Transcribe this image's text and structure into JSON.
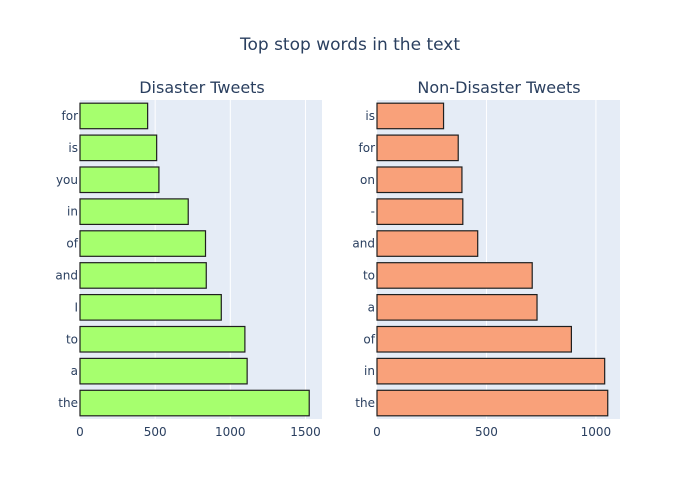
{
  "title": "Top stop words in the text",
  "chart_data": [
    {
      "type": "bar",
      "orientation": "horizontal",
      "title": "Disaster Tweets",
      "categories": [
        "the",
        "a",
        "to",
        "I",
        "and",
        "of",
        "in",
        "you",
        "is",
        "for"
      ],
      "values": [
        1525,
        1112,
        1097,
        940,
        840,
        835,
        720,
        525,
        510,
        450
      ],
      "xlim": [
        0,
        1610
      ],
      "xticks": [
        0,
        500,
        1000,
        1500
      ],
      "bar_color": "#a6ff6e",
      "bar_outline": "#1f1f1f",
      "plot_background": "#e5ecf6",
      "grid": true
    },
    {
      "type": "bar",
      "orientation": "horizontal",
      "title": "Non-Disaster Tweets",
      "categories": [
        "the",
        "in",
        "of",
        "a",
        "to",
        "and",
        "-",
        "on",
        "for",
        "is"
      ],
      "values": [
        1054,
        1040,
        888,
        731,
        709,
        460,
        392,
        388,
        371,
        304
      ],
      "xlim": [
        0,
        1110
      ],
      "xticks": [
        0,
        500,
        1000
      ],
      "bar_color": "#f9a17a",
      "bar_outline": "#1f1f1f",
      "plot_background": "#e5ecf6",
      "grid": true
    }
  ]
}
